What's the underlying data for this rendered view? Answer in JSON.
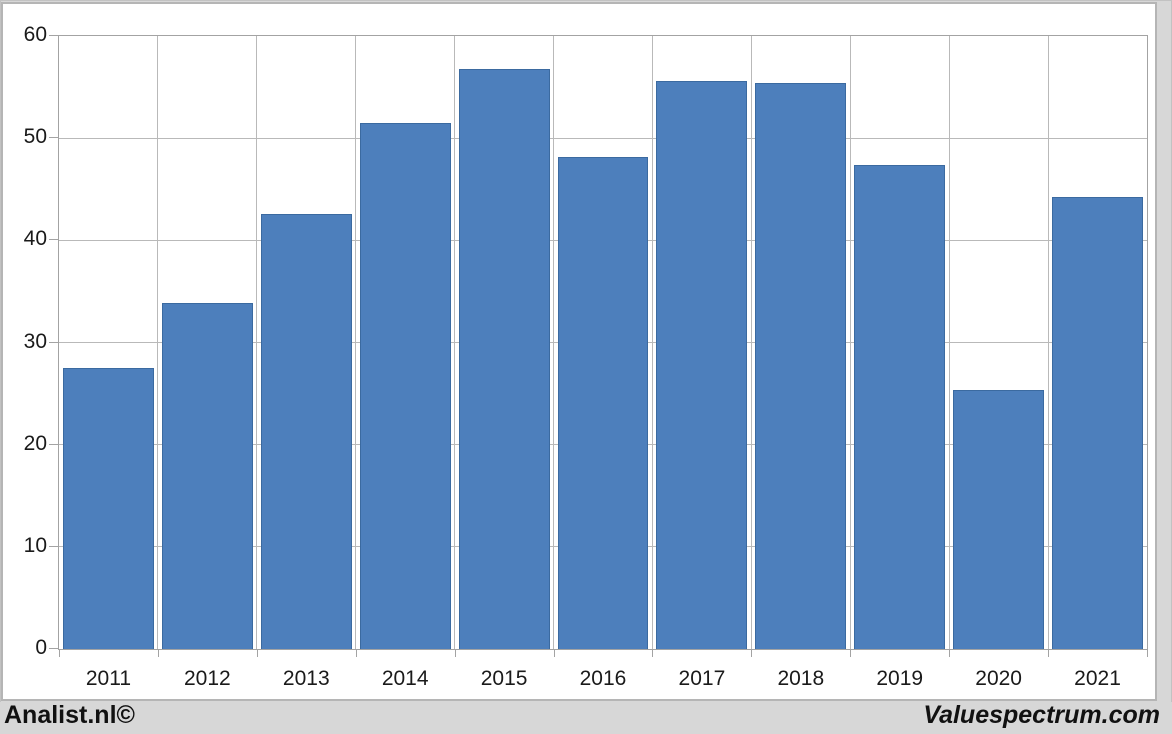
{
  "chart_data": {
    "type": "bar",
    "title": "",
    "xlabel": "",
    "ylabel": "",
    "categories": [
      "2011",
      "2012",
      "2013",
      "2014",
      "2015",
      "2016",
      "2017",
      "2018",
      "2019",
      "2020",
      "2021"
    ],
    "values": [
      27.5,
      33.9,
      42.6,
      51.5,
      56.8,
      48.2,
      55.6,
      55.4,
      47.4,
      25.4,
      44.2
    ],
    "ylim": [
      0,
      60
    ],
    "yticks": [
      0,
      10,
      20,
      30,
      40,
      50,
      60
    ],
    "grid": "horizontal-and-vertical",
    "legend_position": "none",
    "bar_color": "#4d7fbc",
    "bar_border_color": "#3b6aa0",
    "gridline_color": "#b9b9b9",
    "axis_color": "#a3a3a3",
    "label_color": "#1a1a1a",
    "plot_background": "#ffffff",
    "page_background": "#d7d7d7"
  },
  "footer": {
    "left": "Analist.nl©",
    "right": "Valuespectrum.com"
  }
}
